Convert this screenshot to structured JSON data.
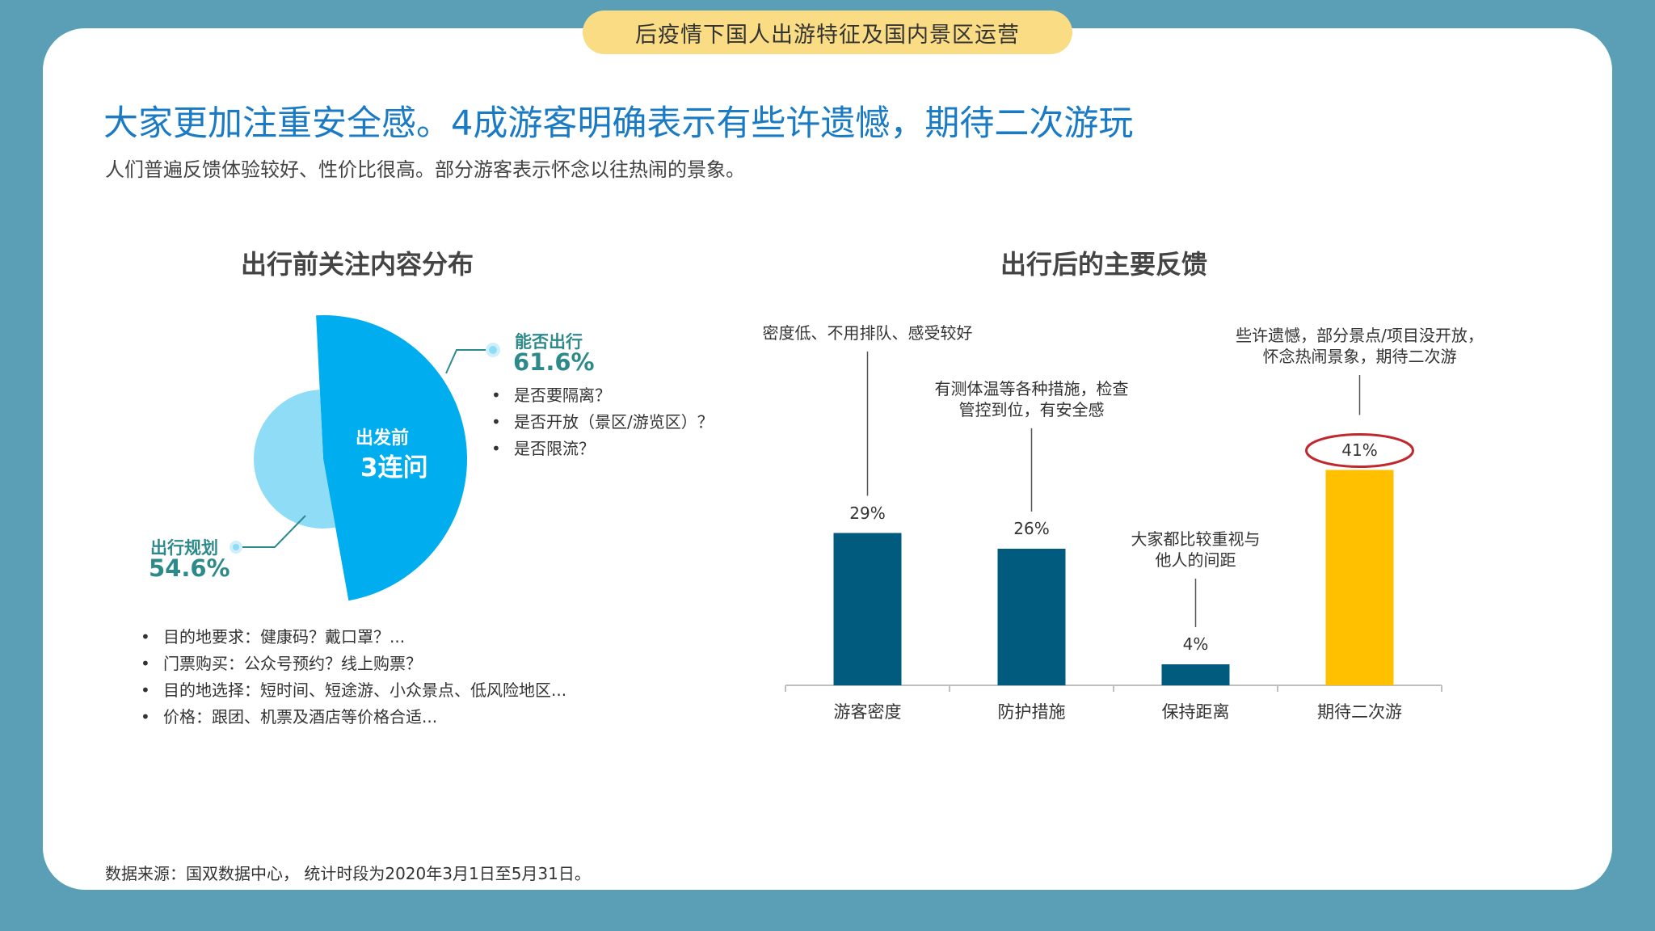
{
  "banner": "后疫情下国人出游特征及国内景区运营",
  "headline": "大家更加注重安全感。4成游客明确表示有些许遗憾，期待二次游玩",
  "subheadline": "人们普遍反馈体验较好、性价比很高。部分游客表示怀念以往热闹的景象。",
  "left_chart": {
    "title": "出行前关注内容分布",
    "center_line1": "出发前",
    "center_line2": "3连问",
    "callout_top": {
      "name": "能否出行",
      "value": "61.6%"
    },
    "callout_bottom": {
      "name": "出行规划",
      "value": "54.6%"
    },
    "top_bullets": [
      "是否要隔离？",
      "是否开放（景区/游览区）？",
      "是否限流？"
    ],
    "bottom_bullets": [
      "目的地要求：健康码？戴口罩？...",
      "门票购买：公众号预约？线上购票？",
      "目的地选择：短时间、短途游、小众景点、低风险地区...",
      "价格：跟团、机票及酒店等价格合适..."
    ],
    "colors": {
      "outer": "#00aeef",
      "inner": "#8fdcf7",
      "accent": "#2e8a8a"
    }
  },
  "right_chart": {
    "title": "出行后的主要反馈",
    "annotations": [
      [
        "密度低、不用排队、感受较好"
      ],
      [
        "有测体温等各种措施，检查",
        "管控到位，有安全感"
      ],
      [
        "大家都比较重视与",
        "他人的间距"
      ],
      [
        "些许遗憾，部分景点/项目没开放，",
        "怀念热闹景象，期待二次游"
      ]
    ],
    "value_labels": [
      "29%",
      "26%",
      "4%",
      "41%"
    ]
  },
  "chart_data": [
    {
      "type": "pie",
      "title": "出行前关注内容分布",
      "categories": [
        "能否出行",
        "出行规划"
      ],
      "values": [
        61.6,
        54.6
      ],
      "unit": "%"
    },
    {
      "type": "bar",
      "title": "出行后的主要反馈",
      "categories": [
        "游客密度",
        "防护措施",
        "保持距离",
        "期待二次游"
      ],
      "values": [
        29,
        26,
        4,
        41
      ],
      "unit": "%",
      "colors": [
        "#005b7f",
        "#005b7f",
        "#005b7f",
        "#ffc000"
      ],
      "highlight": "期待二次游",
      "grid": false
    }
  ],
  "source": "数据来源：国双数据中心， 统计时段为2020年3月1日至5月31日。"
}
